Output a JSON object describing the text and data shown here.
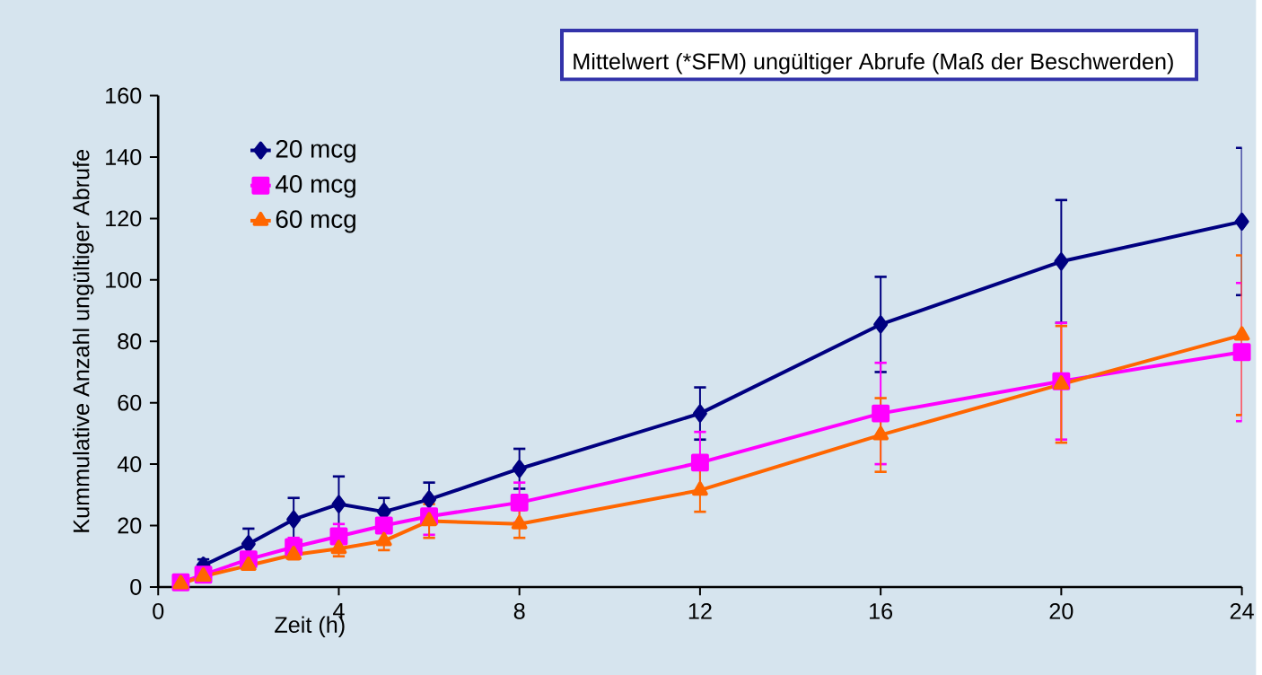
{
  "chart_data": {
    "type": "line",
    "title": "Mittelwert (*SFM) ungültiger Abrufe (Maß der Beschwerden)",
    "xlabel": "Zeit (h)",
    "ylabel": "Kummulative Anzahl ungültiger Abrufe",
    "x": [
      0.5,
      1,
      2,
      3,
      4,
      5,
      6,
      8,
      12,
      16,
      20,
      24
    ],
    "series": [
      {
        "name": "20 mcg",
        "color": "#000080",
        "marker": "diamond",
        "values": [
          null,
          7,
          14,
          22,
          27,
          24.5,
          28.5,
          38.5,
          56.5,
          85.5,
          106,
          119
        ],
        "errors": [
          null,
          2,
          5,
          7,
          9,
          4.5,
          5.5,
          6.5,
          8.5,
          15.5,
          20,
          24
        ]
      },
      {
        "name": "40 mcg",
        "color": "#ff00ff",
        "marker": "square",
        "values": [
          1.5,
          4,
          9,
          13,
          16.5,
          20,
          23,
          27.5,
          40.5,
          56.5,
          67,
          76.5
        ],
        "errors": [
          null,
          null,
          1,
          3,
          4,
          1,
          6,
          6.5,
          10,
          16.5,
          19,
          22.5
        ]
      },
      {
        "name": "60 mcg",
        "color": "#ff6600",
        "marker": "triangle",
        "values": [
          1,
          3.5,
          7,
          10.5,
          12.5,
          15,
          21.5,
          20.5,
          31.5,
          49.5,
          66,
          82
        ],
        "errors": [
          null,
          null,
          1,
          1.5,
          2.5,
          3,
          5.5,
          4.5,
          7,
          12,
          19,
          26
        ]
      }
    ],
    "xlim": [
      0,
      24
    ],
    "xticks": [
      0,
      4,
      8,
      12,
      16,
      20,
      24
    ],
    "ylim": [
      0,
      160
    ],
    "yticks": [
      0,
      20,
      40,
      60,
      80,
      100,
      120,
      140,
      160
    ],
    "grid": false,
    "legend": "top left",
    "line_style": "solid"
  }
}
